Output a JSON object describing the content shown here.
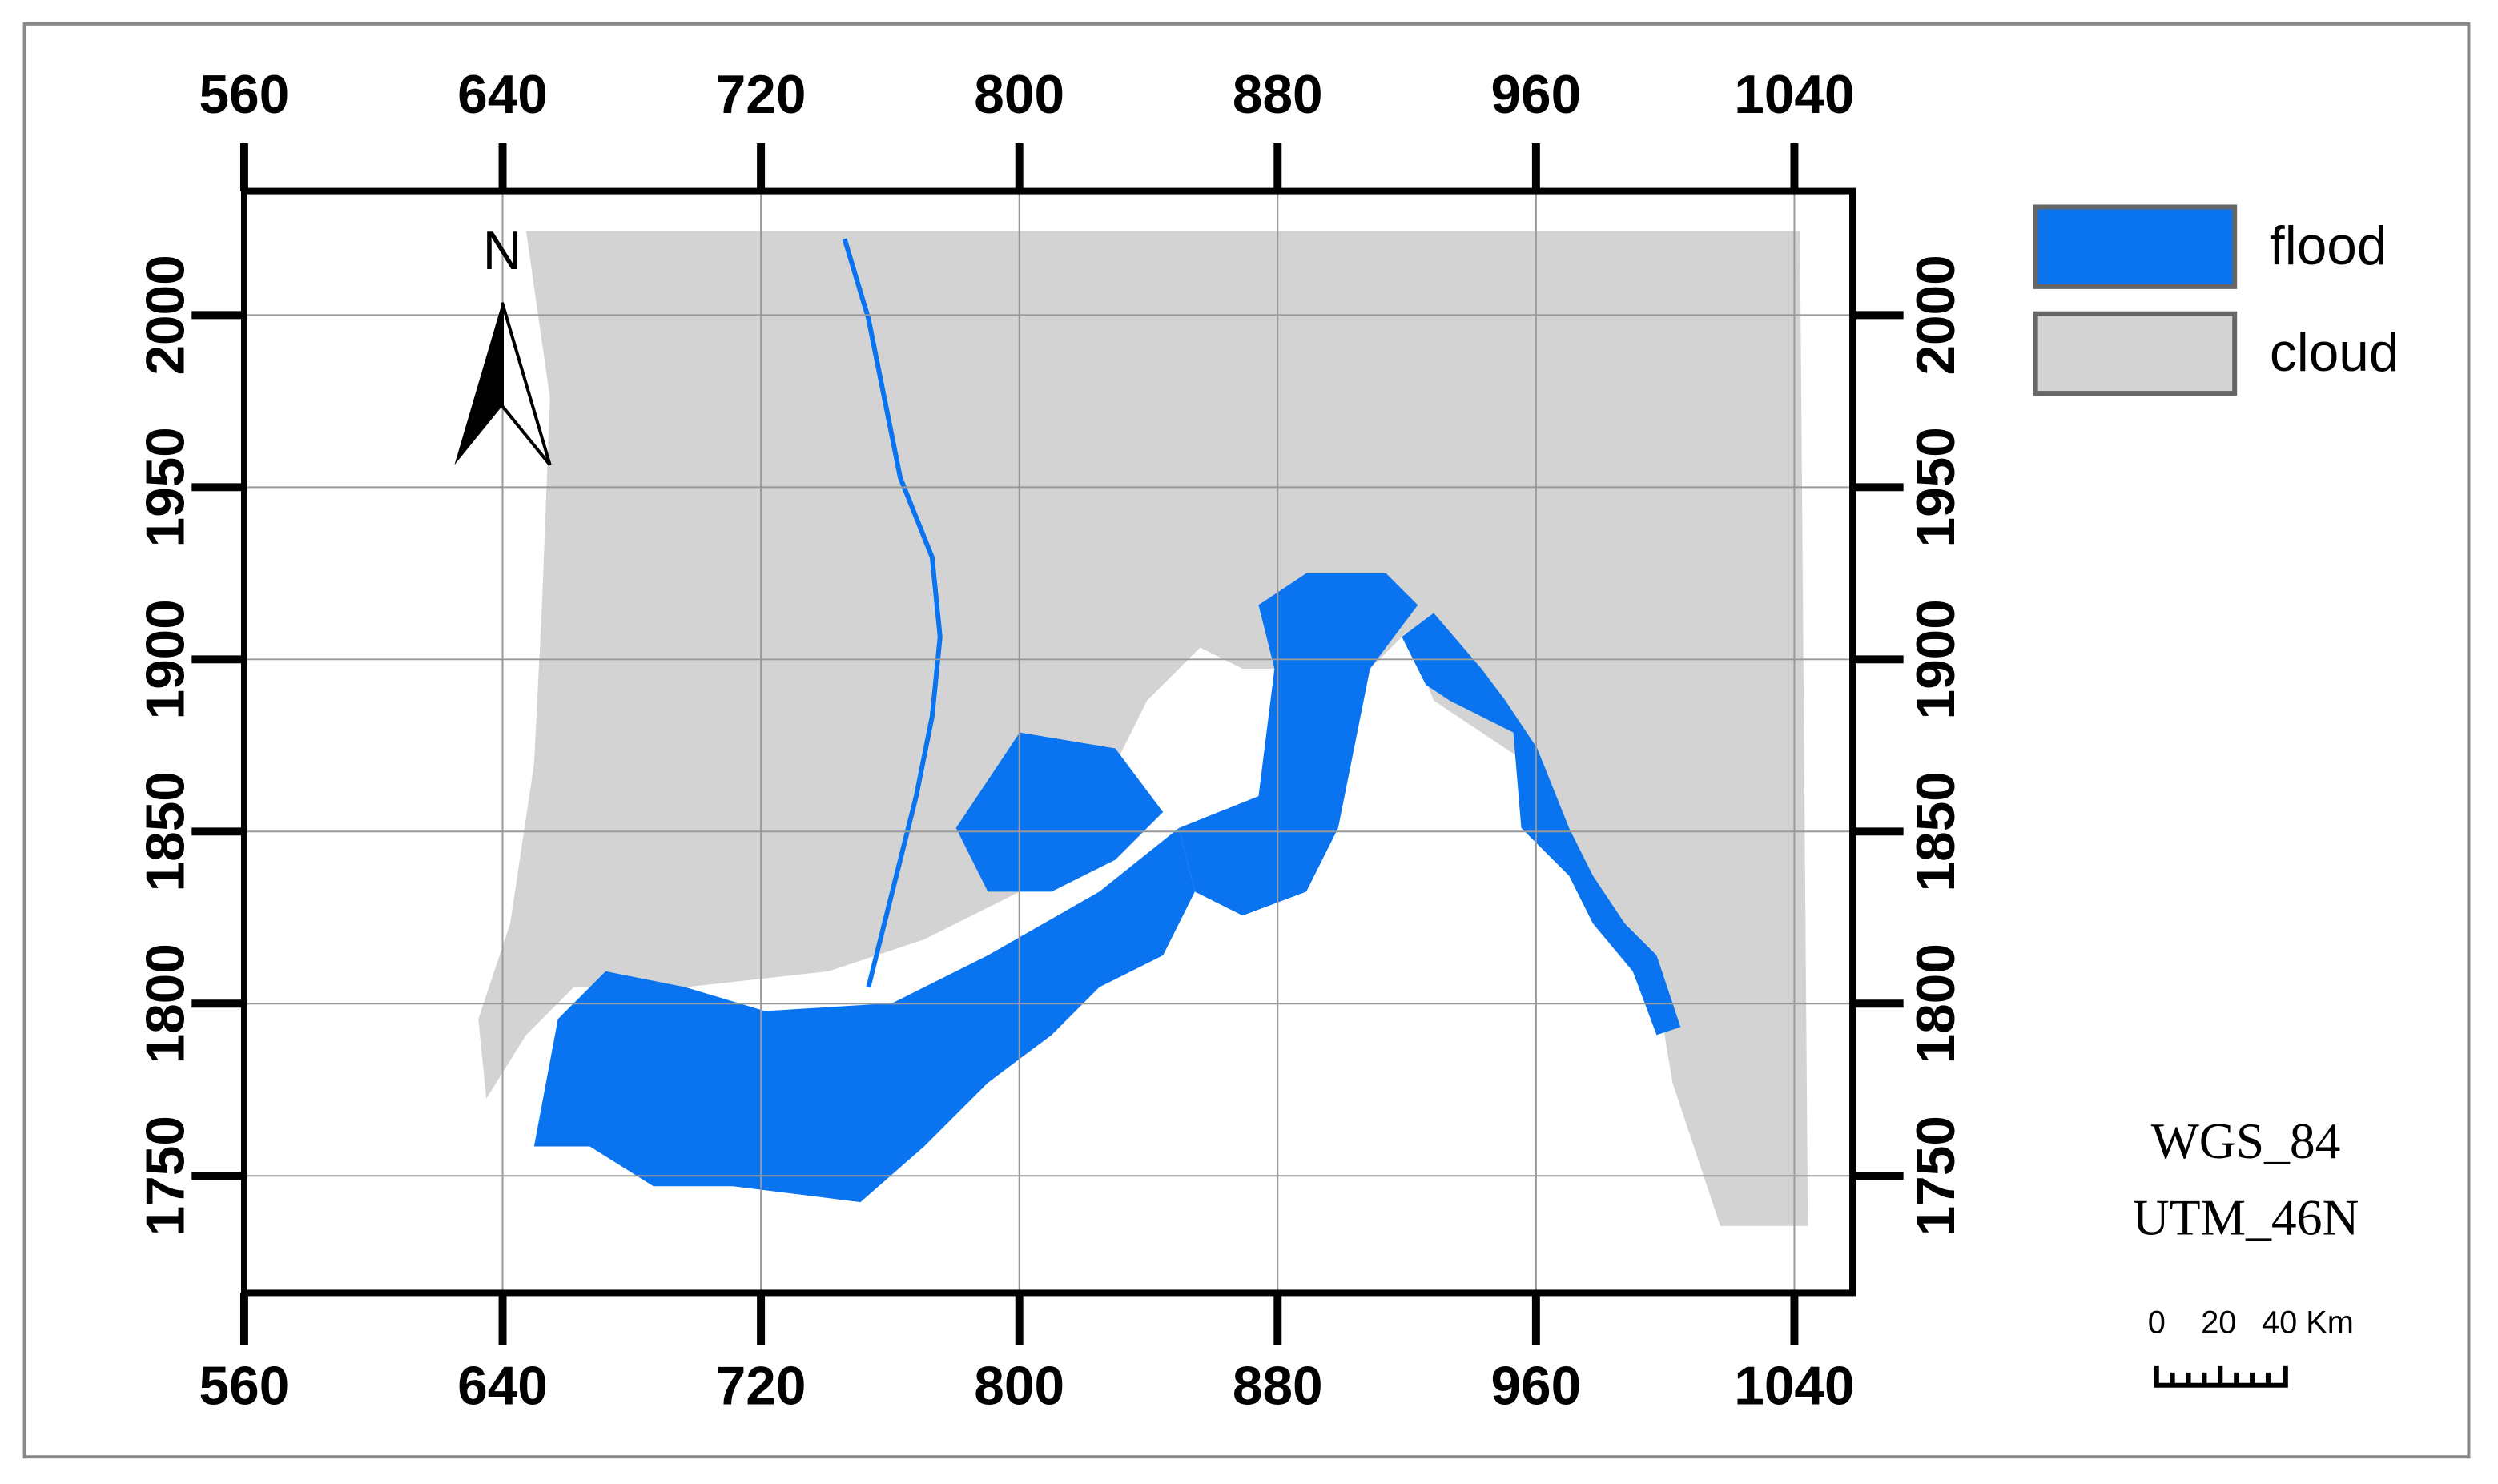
{
  "map": {
    "xlim": [
      560,
      1058
    ],
    "ylim": [
      1716,
      2036
    ],
    "xticks": [
      560,
      640,
      720,
      800,
      880,
      960,
      1040
    ],
    "yticks": [
      1750,
      1800,
      1850,
      1900,
      1950,
      2000
    ],
    "grid": true,
    "north_label": "N",
    "legend": [
      {
        "label": "flood",
        "color": "#0a74f0"
      },
      {
        "label": "cloud",
        "color": "#d3d3d3"
      }
    ],
    "projection": [
      "WGS_84",
      "UTM_46N"
    ],
    "scale_bar": [
      "0",
      "20",
      "40 Km"
    ]
  }
}
